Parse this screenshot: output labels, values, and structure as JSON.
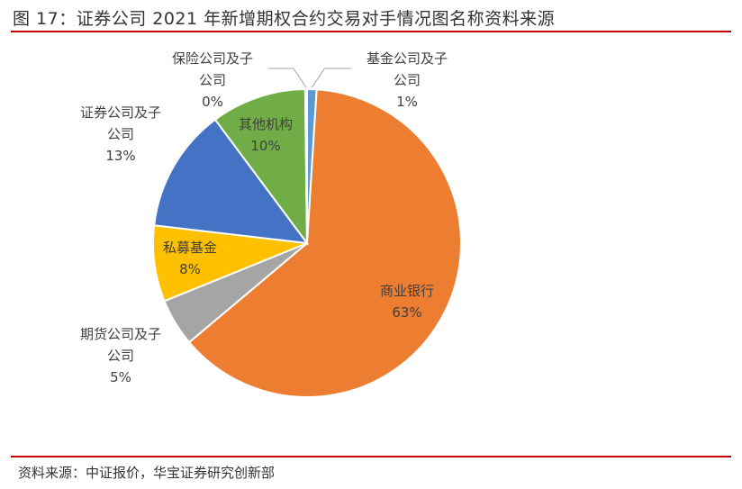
{
  "header": {
    "title": "图 17：证券公司 2021 年新增期权合约交易对手情况图名称资料来源"
  },
  "footer": {
    "source": "资料来源：中证报价，华宝证券研究创新部"
  },
  "chart_data": {
    "type": "pie",
    "title": "",
    "slices": [
      {
        "label_lines": [
          "基金公司及子",
          "公司"
        ],
        "pct_text": "1%",
        "value": 1.0,
        "color": "#5b9bd5"
      },
      {
        "label_lines": [
          "商业银行"
        ],
        "pct_text": "63%",
        "value": 63.0,
        "color": "#ed7d31"
      },
      {
        "label_lines": [
          "期货公司及子",
          "公司"
        ],
        "pct_text": "5%",
        "value": 5.0,
        "color": "#a5a5a5"
      },
      {
        "label_lines": [
          "私募基金"
        ],
        "pct_text": "8%",
        "value": 8.0,
        "color": "#ffc000"
      },
      {
        "label_lines": [
          "证券公司及子",
          "公司"
        ],
        "pct_text": "13%",
        "value": 13.0,
        "color": "#4472c4"
      },
      {
        "label_lines": [
          "其他机构"
        ],
        "pct_text": "10%",
        "value": 10.0,
        "color": "#70ad47"
      },
      {
        "label_lines": [
          "保险公司及子",
          "公司"
        ],
        "pct_text": "0%",
        "value": 0.2,
        "color": "#264478"
      }
    ]
  }
}
